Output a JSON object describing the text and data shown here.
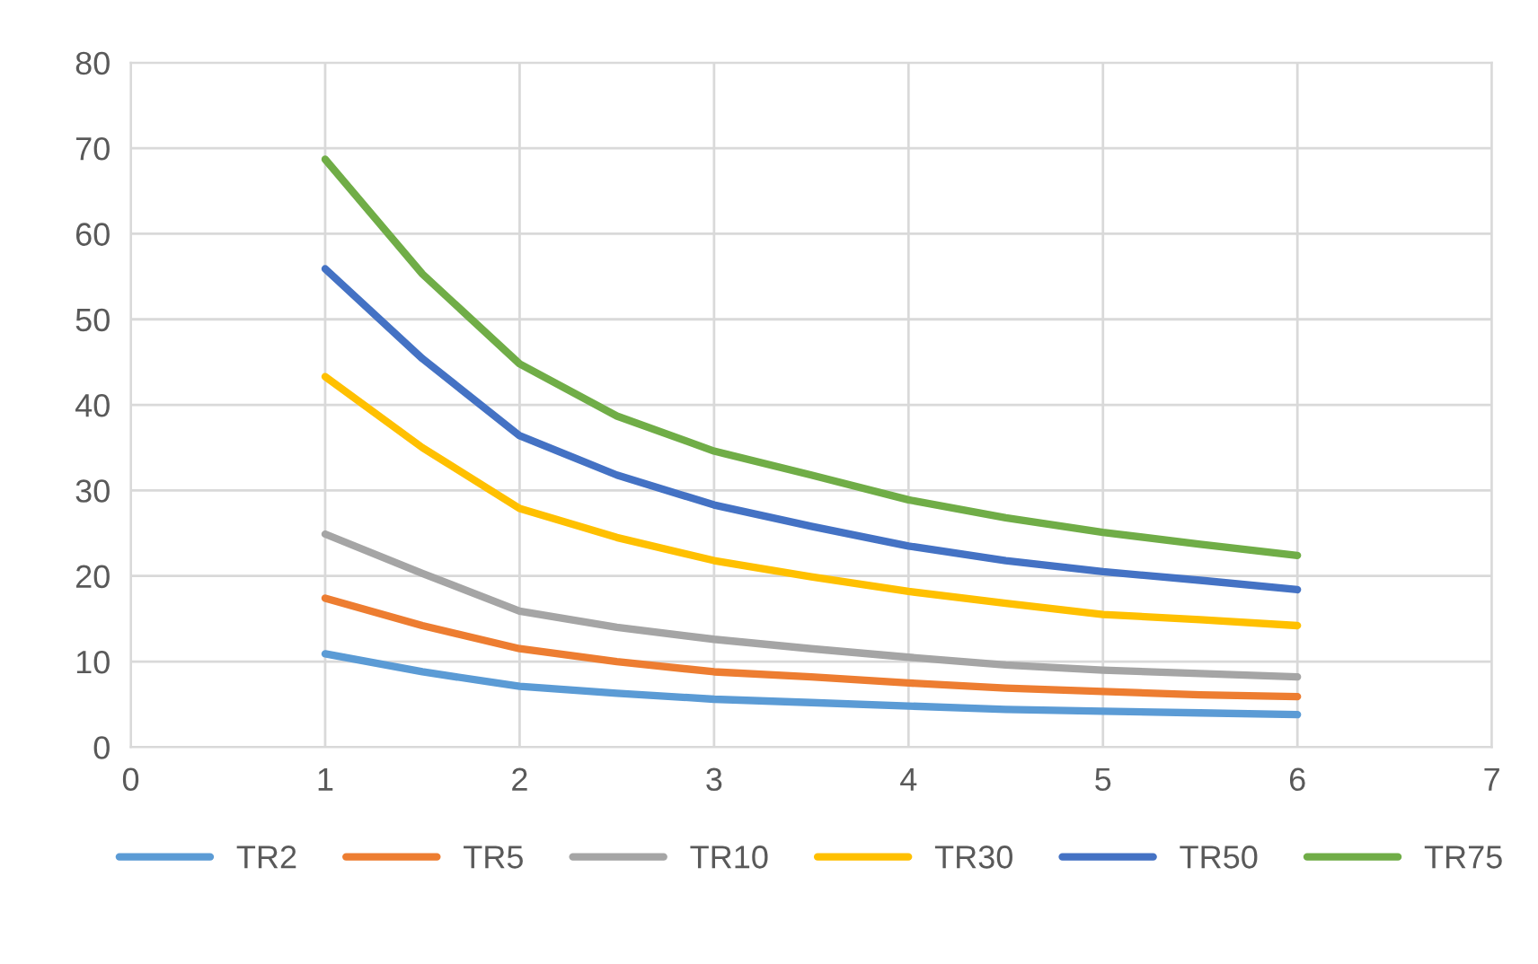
{
  "chart_data": {
    "type": "line",
    "x": [
      1,
      1.5,
      2,
      2.5,
      3,
      3.5,
      4,
      4.5,
      5,
      5.5,
      6
    ],
    "series": [
      {
        "name": "TR2",
        "color": "#5b9bd5",
        "values": [
          10.9,
          8.8,
          7.1,
          6.3,
          5.6,
          5.2,
          4.8,
          4.4,
          4.2,
          4.0,
          3.8
        ]
      },
      {
        "name": "TR5",
        "color": "#ed7d31",
        "values": [
          17.4,
          14.2,
          11.5,
          10.0,
          8.8,
          8.2,
          7.5,
          6.9,
          6.5,
          6.1,
          5.9
        ]
      },
      {
        "name": "TR10",
        "color": "#a5a5a5",
        "values": [
          24.9,
          20.3,
          15.9,
          14.0,
          12.6,
          11.5,
          10.5,
          9.6,
          9.0,
          8.6,
          8.2
        ]
      },
      {
        "name": "TR30",
        "color": "#ffc000",
        "values": [
          43.3,
          35.0,
          27.9,
          24.5,
          21.8,
          19.9,
          18.2,
          16.8,
          15.5,
          14.9,
          14.2
        ]
      },
      {
        "name": "TR50",
        "color": "#4472c4",
        "values": [
          55.9,
          45.4,
          36.4,
          31.8,
          28.3,
          25.8,
          23.5,
          21.8,
          20.5,
          19.5,
          18.4
        ]
      },
      {
        "name": "TR75",
        "color": "#70ad47",
        "values": [
          68.7,
          55.3,
          44.8,
          38.7,
          34.6,
          31.8,
          28.9,
          26.8,
          25.1,
          23.7,
          22.4
        ]
      }
    ],
    "xlim": [
      0,
      7
    ],
    "xticks": [
      0,
      1,
      2,
      3,
      4,
      5,
      6,
      7
    ],
    "ylim": [
      0,
      80
    ],
    "yticks": [
      0,
      10,
      20,
      30,
      40,
      50,
      60,
      70,
      80
    ],
    "grid": true,
    "legend": "bottom",
    "marker": "none",
    "line_style": "solid"
  }
}
